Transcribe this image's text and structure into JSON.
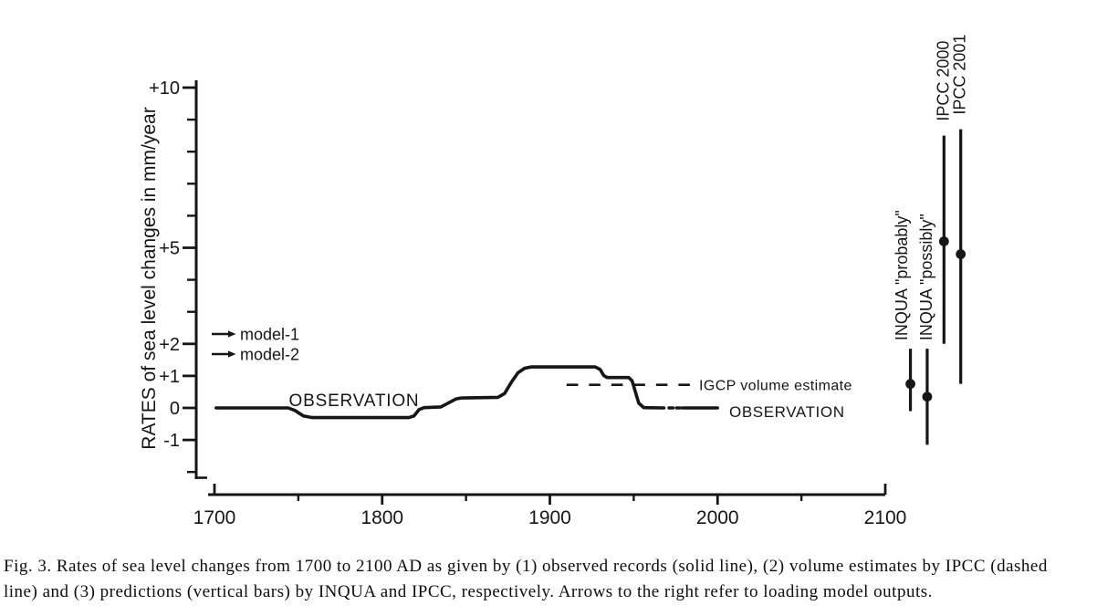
{
  "figure": {
    "caption_line1": "Fig. 3. Rates of sea level changes from 1700 to 2100 AD as given by (1) observed records (solid line), (2) volume estimates by IPCC (dashed",
    "caption_line2": "line) and (3) predictions (vertical bars) by INQUA and IPCC, respectively. Arrows to the right refer to loading model outputs."
  },
  "chart_data": {
    "type": "line",
    "title": "",
    "xlabel": "",
    "ylabel": "RATES of sea level changes in mm/year",
    "xlim": [
      1700,
      2100
    ],
    "ylim": [
      -2.3,
      10.3
    ],
    "grid": false,
    "ink_color": "#161616",
    "paper_color": "#ffffff",
    "x_ticks_major": [
      {
        "x": 1700,
        "label": "1700"
      },
      {
        "x": 1800,
        "label": "1800"
      },
      {
        "x": 1900,
        "label": "1900"
      },
      {
        "x": 2000,
        "label": "2000"
      },
      {
        "x": 2100,
        "label": "2100"
      }
    ],
    "x_ticks_minor": [
      1750,
      1850,
      1950,
      2050
    ],
    "y_ticks_major": [
      {
        "v": 10,
        "label": "+10"
      },
      {
        "v": 5,
        "label": "+5"
      },
      {
        "v": 2,
        "label": "+2"
      },
      {
        "v": 1,
        "label": "+1"
      },
      {
        "v": 0,
        "label": "0"
      },
      {
        "v": -1,
        "label": "-1"
      }
    ],
    "y_ticks_minor": [
      9,
      8,
      7,
      6,
      4,
      3,
      -2
    ],
    "legend": {
      "items": [
        {
          "marker": "right-arrow",
          "label": "model-1"
        },
        {
          "marker": "right-arrow",
          "label": "model-2"
        }
      ]
    },
    "observed_series": {
      "name": "observed records",
      "style": "solid",
      "label_mid": "OBSERVATION",
      "label_right": "OBSERVATION",
      "points_year_mmyr": [
        [
          1701,
          0
        ],
        [
          1744,
          0
        ],
        [
          1748,
          -0.08
        ],
        [
          1753,
          -0.25
        ],
        [
          1758,
          -0.3
        ],
        [
          1816,
          -0.3
        ],
        [
          1819,
          -0.25
        ],
        [
          1822,
          -0.05
        ],
        [
          1825,
          0.01
        ],
        [
          1835,
          0.03
        ],
        [
          1839,
          0.14
        ],
        [
          1844,
          0.28
        ],
        [
          1847,
          0.31
        ],
        [
          1869,
          0.33
        ],
        [
          1873,
          0.45
        ],
        [
          1877,
          0.8
        ],
        [
          1881,
          1.1
        ],
        [
          1885,
          1.24
        ],
        [
          1889,
          1.28
        ],
        [
          1927,
          1.28
        ],
        [
          1930,
          1.2
        ],
        [
          1932,
          1.02
        ],
        [
          1934,
          0.95
        ],
        [
          1947,
          0.95
        ],
        [
          1949,
          0.85
        ],
        [
          1951,
          0.5
        ],
        [
          1953,
          0.15
        ],
        [
          1956,
          0.01
        ],
        [
          1968,
          0
        ]
      ],
      "tail_segments_year_mmyr": [
        [
          [
            1971,
            0
          ],
          [
            1973.5,
            0
          ]
        ],
        [
          [
            1975.5,
            0
          ],
          [
            1977.5,
            0
          ]
        ],
        [
          [
            1979,
            0
          ],
          [
            2000,
            0
          ]
        ]
      ]
    },
    "igcp_series": {
      "label": "IGCP volume estimate",
      "style": "dashed",
      "value_mmyr": 0.72,
      "from_year": 1910,
      "to_year": 1984
    },
    "predictions": [
      {
        "label": "INQUA \"probably\"",
        "x_year": 2115,
        "min": -0.1,
        "max": 1.85,
        "best": 0.75
      },
      {
        "label": "INQUA \"possibly\"",
        "x_year": 2125,
        "min": -1.15,
        "max": 1.85,
        "best": 0.35
      },
      {
        "label": "IPCC 2000",
        "x_year": 2135,
        "min": 2.0,
        "max": 8.5,
        "best": 5.2
      },
      {
        "label": "IPCC 2001",
        "x_year": 2145,
        "min": 0.75,
        "max": 8.7,
        "best": 4.8
      }
    ]
  }
}
